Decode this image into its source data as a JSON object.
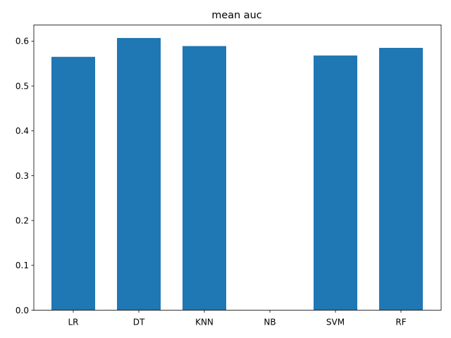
{
  "chart_data": {
    "type": "bar",
    "title": "mean auc",
    "xlabel": "",
    "ylabel": "",
    "categories": [
      "LR",
      "DT",
      "KNN",
      "NB",
      "SVM",
      "RF"
    ],
    "values": [
      0.565,
      0.607,
      0.589,
      0.0,
      0.568,
      0.585
    ],
    "ylim": [
      0,
      0.636
    ],
    "yticks": [
      0.0,
      0.1,
      0.2,
      0.3,
      0.4,
      0.5,
      0.6
    ],
    "ytick_labels": [
      "0.0",
      "0.1",
      "0.2",
      "0.3",
      "0.4",
      "0.5",
      "0.6"
    ],
    "bar_color": "#1f77b4",
    "grid": false,
    "legend": "none"
  }
}
